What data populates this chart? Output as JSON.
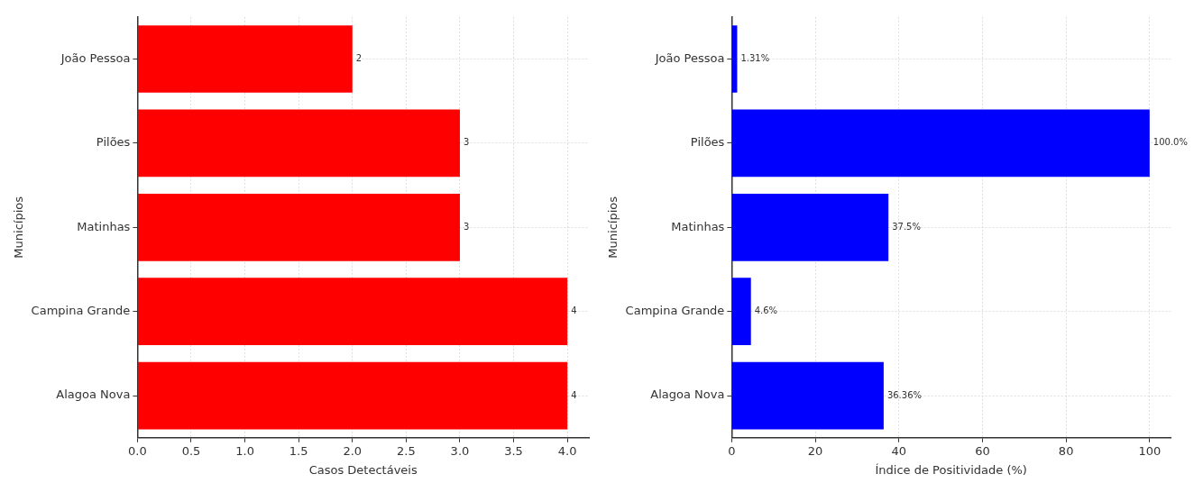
{
  "chart_data": [
    {
      "type": "bar",
      "orientation": "horizontal",
      "categories": [
        "João Pessoa",
        "Pilões",
        "Matinhas",
        "Campina Grande",
        "Alagoa Nova"
      ],
      "values": [
        2,
        3,
        3,
        4,
        4
      ],
      "color": "#ff0000",
      "xlabel": "Casos Detectáveis",
      "ylabel": "Municípios",
      "xlim": [
        0,
        4.2
      ],
      "xticks": [
        {
          "value": 0,
          "label": "0.0"
        },
        {
          "value": 0.5,
          "label": "0.5"
        },
        {
          "value": 1,
          "label": "1.0"
        },
        {
          "value": 1.5,
          "label": "1.5"
        },
        {
          "value": 2,
          "label": "2.0"
        },
        {
          "value": 2.5,
          "label": "2.5"
        },
        {
          "value": 3,
          "label": "3.0"
        },
        {
          "value": 3.5,
          "label": "3.5"
        },
        {
          "value": 4,
          "label": "4.0"
        }
      ],
      "grid": true,
      "data_labels": true
    },
    {
      "type": "bar",
      "orientation": "horizontal",
      "categories": [
        "João Pessoa",
        "Pilões",
        "Matinhas",
        "Campina Grande",
        "Alagoa Nova"
      ],
      "values": [
        1.31,
        100,
        37.5,
        4.6,
        36.36
      ],
      "value_labels": [
        "1.31%",
        "100.0%",
        "37.5%",
        "4.6%",
        "36.36%"
      ],
      "color": "#0000ff",
      "xlabel": "Índice de Positividade (%)",
      "ylabel": "Municípios",
      "xlim": [
        0,
        105
      ],
      "xticks": [
        0,
        20,
        40,
        60,
        80,
        100
      ],
      "grid": true
    }
  ]
}
